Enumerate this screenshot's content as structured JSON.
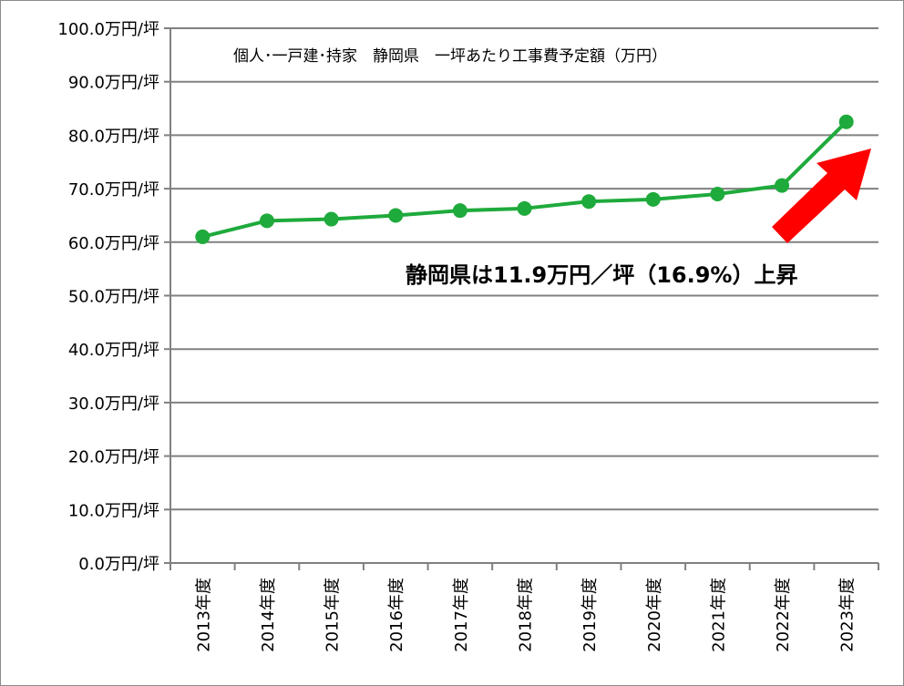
{
  "chart_data": {
    "type": "line",
    "title": "個人･一戸建･持家　静岡県　一坪あたり工事費予定額（万円）",
    "categories": [
      "2013年度",
      "2014年度",
      "2015年度",
      "2016年度",
      "2017年度",
      "2018年度",
      "2019年度",
      "2020年度",
      "2021年度",
      "2022年度",
      "2023年度"
    ],
    "series": [
      {
        "values": [
          61.0,
          64.0,
          64.3,
          65.0,
          65.9,
          66.3,
          67.6,
          68.0,
          69.0,
          70.6,
          82.5
        ],
        "color": "#1faa3c"
      }
    ],
    "ylim": [
      0,
      100
    ],
    "yticks": [
      0,
      10,
      20,
      30,
      40,
      50,
      60,
      70,
      80,
      90,
      100
    ],
    "ytick_labels": [
      "0.0万円/坪",
      "10.0万円/坪",
      "20.0万円/坪",
      "30.0万円/坪",
      "40.0万円/坪",
      "50.0万円/坪",
      "60.0万円/坪",
      "70.0万円/坪",
      "80.0万円/坪",
      "90.0万円/坪",
      "100.0万円/坪"
    ],
    "grid": true,
    "annotation": "静岡県は11.9万円／坪（16.9%）上昇",
    "arrow_color": "#ff0000",
    "gridline_color": "#808080"
  }
}
